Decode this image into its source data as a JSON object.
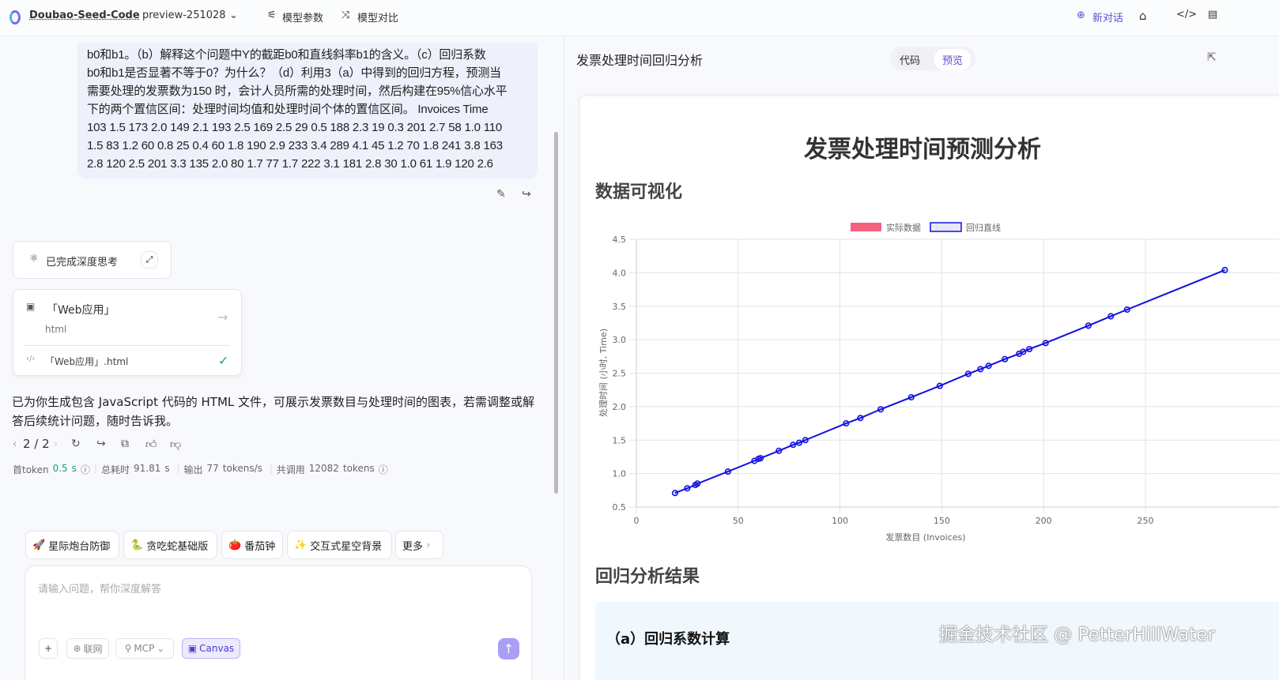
{
  "header": {
    "model_name": "Doubao-Seed-Code",
    "model_version": "preview-251028",
    "params_label": "模型参数",
    "compare_label": "模型对比",
    "new_chat_label": "新对话",
    "accent": "#5b4fd8"
  },
  "user_message": {
    "lines": [
      "b0和b1。（b）解释这个问题中Y的截距b0和直线斜率b1的含义。（c）回归系数",
      "b0和b1是否显著不等于0？为什么？（d）利用3（a）中得到的回归方程，预测当",
      "需要处理的发票数为150 时，会计人员所需的处理时间，然后构建在95%信心水平",
      "下的两个置信区间：处理时间均值和处理时间个体的置信区间。 Invoices Time",
      "103 1.5 173 2.0 149 2.1 193 2.5 169 2.5 29 0.5 188 2.3 19 0.3 201 2.7 58 1.0 110",
      "1.5 83 1.2 60 0.8 25 0.4 60 1.8 190 2.9 233 3.4 289 4.1 45 1.2 70 1.8 241 3.8 163",
      "2.8 120 2.5 201 3.3 135 2.0 80 1.7 77 1.7 222 3.1 181 2.8 30 1.0 61 1.9 120 2.6"
    ]
  },
  "thinking": {
    "label": "已完成深度思考"
  },
  "artifact": {
    "title": "「Web应用」",
    "type": "html",
    "file": "「Web应用」.html"
  },
  "reply": {
    "text": "已为你生成包含 JavaScript 代码的 HTML 文件，可展示发票数目与处理时间的图表，若需调整或解答后续统计问题，随时告诉我。",
    "pager": "2 / 2"
  },
  "stats": {
    "first_token_label": "首token",
    "first_token_value": "0.5",
    "first_token_unit": "s",
    "total_label": "总耗时",
    "total_value": "91.81",
    "total_unit": "s",
    "output_label": "输出",
    "output_value": "77",
    "output_unit": "tokens/s",
    "calls_label": "共调用",
    "calls_value": "12082",
    "calls_unit": "tokens"
  },
  "suggestions": [
    "星际炮台防御",
    "贪吃蛇基础版",
    "番茄钟",
    "交互式星空背景",
    "更多"
  ],
  "input": {
    "placeholder": "请输入问题，帮你深度解答",
    "web_label": "联网",
    "mcp_label": "MCP",
    "canvas_label": "Canvas"
  },
  "preview": {
    "title": "发票处理时间回归分析",
    "tabs": [
      "代码",
      "预览"
    ],
    "active_tab": "预览",
    "doc_title": "发票处理时间预测分析",
    "section1": "数据可视化",
    "section2": "回归分析结果",
    "subsection": "（a）回归系数计算"
  },
  "watermark": "掘金技术社区 @ PetterHillWater",
  "chart_data": {
    "type": "line",
    "xlabel": "发票数目 (Invoices)",
    "ylabel": "处理时间 (小时, Time)",
    "xlim": [
      0,
      290
    ],
    "ylim": [
      0.5,
      4.5
    ],
    "xticks": [
      "0",
      "50",
      "100",
      "150",
      "200",
      "250"
    ],
    "yticks": [
      "0.5",
      "1.0",
      "1.5",
      "2.0",
      "2.5",
      "3.0",
      "3.5",
      "4.0",
      "4.5"
    ],
    "grid": true,
    "legend": "top",
    "legend_entries": [
      {
        "name": "实际数据",
        "color": "#f5607e"
      },
      {
        "name": "回归直线",
        "color": "#1010e0"
      }
    ],
    "series": [
      {
        "name": "回归直线",
        "color": "#1010e0",
        "x": [
          19,
          25,
          29,
          30,
          45,
          58,
          60,
          61,
          70,
          77,
          80,
          83,
          103,
          110,
          120,
          135,
          149,
          163,
          169,
          173,
          181,
          188,
          190,
          193,
          201,
          222,
          233,
          241,
          289
        ],
        "y": [
          0.71,
          0.78,
          0.83,
          0.85,
          1.03,
          1.19,
          1.22,
          1.23,
          1.34,
          1.43,
          1.46,
          1.5,
          1.75,
          1.83,
          1.96,
          2.14,
          2.31,
          2.49,
          2.56,
          2.61,
          2.71,
          2.79,
          2.82,
          2.86,
          2.95,
          3.21,
          3.35,
          3.45,
          4.04
        ]
      }
    ]
  }
}
